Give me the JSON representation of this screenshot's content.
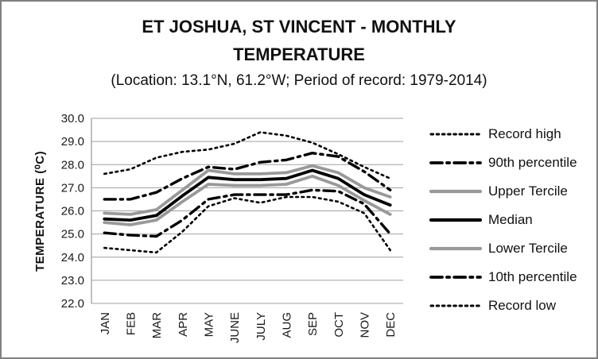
{
  "colors": {
    "line_black": "#000000",
    "line_gray": "#999999",
    "gridline": "#a0a0a0",
    "axis_line": "#808080",
    "text": "#1a1a1a",
    "frame": "#808080",
    "background": "#ffffff"
  },
  "chart_data": {
    "type": "line",
    "title": "ET JOSHUA, ST VINCENT - MONTHLY TEMPERATURE",
    "subtitle": "(Location: 13.1°N, 61.2°W; Period of record: 1979-2014)",
    "xlabel": "",
    "ylabel": "TEMPERATURE (⁰C)",
    "ylim": [
      22.0,
      30.0
    ],
    "ytick_step": 1.0,
    "y_ticks": [
      "30.0",
      "29.0",
      "28.0",
      "27.0",
      "26.0",
      "25.0",
      "24.0",
      "23.0",
      "22.0"
    ],
    "grid": true,
    "legend_position": "right",
    "categories": [
      "JAN",
      "FEB",
      "MAR",
      "APR",
      "MAY",
      "JUNE",
      "JULY",
      "AUG",
      "SEP",
      "OCT",
      "NOV",
      "DEC"
    ],
    "series": [
      {
        "name": "Record high",
        "style": "dotted",
        "color": "#000000",
        "values": [
          27.6,
          27.8,
          28.3,
          28.55,
          28.65,
          28.9,
          29.4,
          29.25,
          28.95,
          28.45,
          27.9,
          27.4
        ]
      },
      {
        "name": "90th percentile",
        "style": "dashdot",
        "color": "#000000",
        "values": [
          26.5,
          26.5,
          26.8,
          27.4,
          27.9,
          27.8,
          28.1,
          28.2,
          28.5,
          28.35,
          27.7,
          26.9
        ]
      },
      {
        "name": "Upper Tercile",
        "style": "solid",
        "color": "#999999",
        "values": [
          25.9,
          25.85,
          26.05,
          26.9,
          27.75,
          27.6,
          27.6,
          27.65,
          27.95,
          27.65,
          27.0,
          26.6
        ]
      },
      {
        "name": "Median",
        "style": "solid",
        "color": "#000000",
        "values": [
          25.65,
          25.6,
          25.8,
          26.65,
          27.45,
          27.35,
          27.35,
          27.4,
          27.75,
          27.4,
          26.7,
          26.25
        ]
      },
      {
        "name": "Lower Tercile",
        "style": "solid",
        "color": "#999999",
        "values": [
          25.5,
          25.4,
          25.6,
          26.4,
          27.15,
          27.1,
          27.1,
          27.15,
          27.5,
          27.1,
          26.45,
          25.85
        ]
      },
      {
        "name": "10th percentile",
        "style": "dashdot",
        "color": "#000000",
        "values": [
          25.05,
          24.95,
          24.9,
          25.6,
          26.5,
          26.7,
          26.7,
          26.7,
          26.9,
          26.85,
          26.3,
          25.0
        ]
      },
      {
        "name": "Record low",
        "style": "dotted",
        "color": "#000000",
        "values": [
          24.4,
          24.3,
          24.2,
          25.1,
          26.2,
          26.55,
          26.35,
          26.6,
          26.6,
          26.4,
          25.9,
          24.3
        ]
      }
    ]
  }
}
